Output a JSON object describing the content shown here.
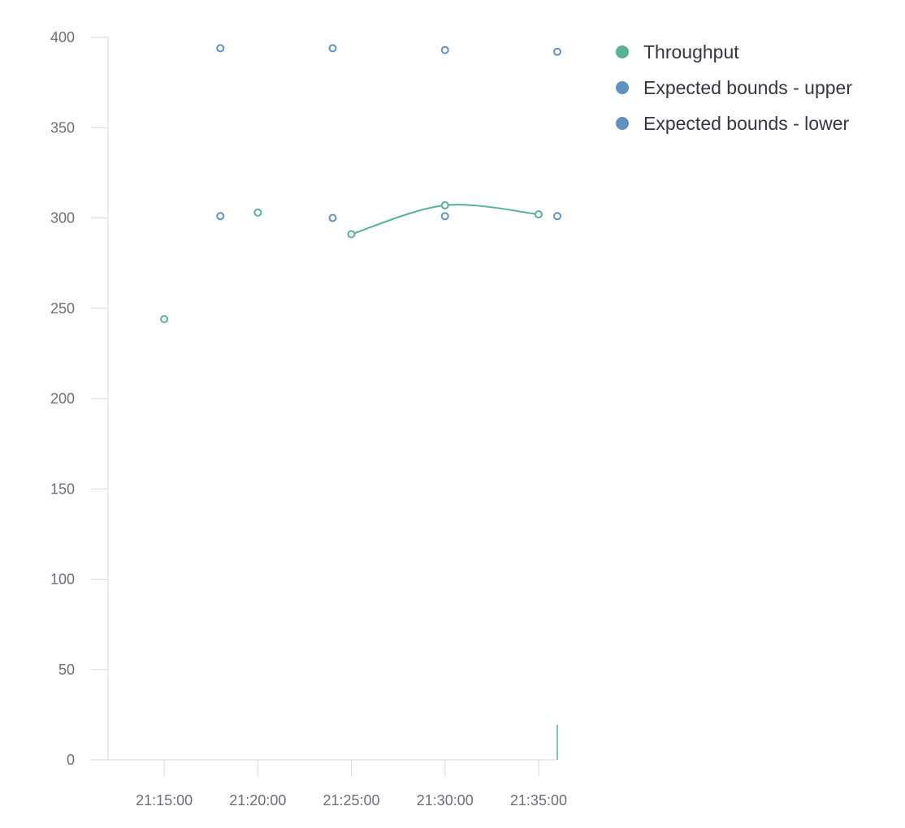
{
  "chart_data": {
    "type": "line",
    "title": "",
    "xlabel": "",
    "ylabel": "",
    "ylim": [
      0,
      400
    ],
    "y_ticks": [
      0,
      50,
      100,
      150,
      200,
      250,
      300,
      350,
      400
    ],
    "x_ticks": [
      "21:15:00",
      "21:20:00",
      "21:25:00",
      "21:30:00",
      "21:35:00"
    ],
    "x_range": [
      "21:12:00",
      "21:36:00"
    ],
    "grid": false,
    "legend_position": "top-right",
    "series": [
      {
        "name": "Throughput",
        "color": "#54b399",
        "style": "line-with-markers",
        "points": [
          {
            "x": "21:15:00",
            "y": 244
          },
          {
            "x": "21:20:00",
            "y": 303
          },
          {
            "x": "21:25:00",
            "y": 291
          },
          {
            "x": "21:30:00",
            "y": 307
          },
          {
            "x": "21:35:00",
            "y": 302
          }
        ],
        "segments": [
          [
            0
          ],
          [
            1
          ],
          [
            2,
            3,
            4
          ]
        ]
      },
      {
        "name": "Expected bounds - upper",
        "color": "#6092c0",
        "style": "markers",
        "points": [
          {
            "x": "21:18:00",
            "y": 394
          },
          {
            "x": "21:24:00",
            "y": 394
          },
          {
            "x": "21:30:00",
            "y": 393
          },
          {
            "x": "21:36:00",
            "y": 392
          }
        ]
      },
      {
        "name": "Expected bounds - lower",
        "color": "#6092c0",
        "style": "markers",
        "points": [
          {
            "x": "21:18:00",
            "y": 301
          },
          {
            "x": "21:24:00",
            "y": 300
          },
          {
            "x": "21:30:00",
            "y": 301
          },
          {
            "x": "21:36:00",
            "y": 301
          }
        ]
      }
    ]
  }
}
